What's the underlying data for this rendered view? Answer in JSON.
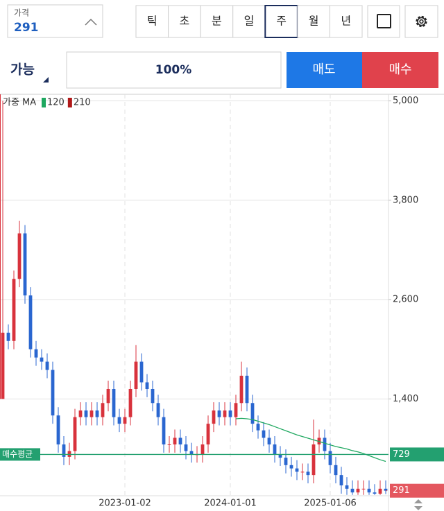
{
  "toolbar": {
    "price_label": "가격",
    "price": "291",
    "periods": [
      "틱",
      "초",
      "분",
      "일",
      "주",
      "월",
      "년"
    ],
    "selected_period": 4,
    "qty_mode": "가능",
    "qty": "100%",
    "sell": "매도",
    "buy": "매수"
  },
  "chart_data": {
    "type": "candlestick",
    "legend_title": "가중 MA",
    "categories": [
      null,
      null,
      null,
      null,
      null,
      null,
      null,
      null,
      null,
      null,
      null,
      null,
      null,
      null,
      null,
      null,
      null,
      null,
      null,
      null,
      null,
      null,
      "2023-01-02",
      null,
      null,
      null,
      null,
      null,
      null,
      null,
      null,
      null,
      null,
      null,
      null,
      null,
      null,
      null,
      null,
      null,
      null,
      "2024-01-01",
      null,
      null,
      null,
      null,
      null,
      null,
      null,
      null,
      null,
      null,
      null,
      null,
      null,
      null,
      null,
      null,
      null,
      "2025-01-06",
      null,
      null,
      null,
      null,
      null,
      null,
      null,
      null,
      null,
      null
    ],
    "open": [
      1400,
      2200,
      2100,
      2850,
      3400,
      2650,
      2000,
      1900,
      1850,
      1750,
      1200,
      850,
      700,
      770,
      1180,
      1260,
      1180,
      1260,
      1180,
      1350,
      1520,
      1180,
      1100,
      1180,
      1520,
      1850,
      1600,
      1520,
      1350,
      1180,
      850,
      850,
      930,
      850,
      770,
      730,
      730,
      850,
      1100,
      1260,
      1180,
      1260,
      1180,
      1350,
      1680,
      1350,
      1100,
      1020,
      930,
      850,
      730,
      690,
      600,
      560,
      520,
      520,
      480,
      850,
      930,
      770,
      600,
      480,
      355,
      315,
      270,
      315,
      315,
      270,
      255,
      315
    ],
    "high": [
      5000,
      2300,
      2950,
      3550,
      3500,
      2750,
      2100,
      2000,
      1950,
      1850,
      1300,
      950,
      870,
      1280,
      1360,
      1360,
      1360,
      1360,
      1450,
      1620,
      1620,
      1280,
      1280,
      1620,
      2050,
      1950,
      1700,
      1620,
      1450,
      1280,
      950,
      1030,
      1030,
      950,
      870,
      830,
      950,
      1200,
      1360,
      1360,
      1360,
      1360,
      1450,
      1850,
      1780,
      1450,
      1200,
      1120,
      1030,
      950,
      830,
      790,
      700,
      660,
      620,
      620,
      1150,
      1030,
      1030,
      870,
      700,
      580,
      455,
      415,
      415,
      415,
      415,
      370,
      415,
      415
    ],
    "low": [
      1400,
      2000,
      2000,
      2750,
      2550,
      1900,
      1800,
      1750,
      1650,
      1100,
      750,
      600,
      600,
      670,
      1080,
      1080,
      1080,
      1080,
      1080,
      1250,
      1080,
      1000,
      1000,
      1080,
      1420,
      1500,
      1420,
      1250,
      1080,
      750,
      750,
      750,
      750,
      670,
      630,
      630,
      630,
      750,
      1000,
      1080,
      1080,
      1080,
      1080,
      1250,
      1250,
      1000,
      920,
      830,
      750,
      630,
      590,
      500,
      460,
      420,
      420,
      380,
      380,
      750,
      670,
      500,
      380,
      255,
      240,
      240,
      240,
      240,
      240,
      240,
      240,
      250
    ],
    "close": [
      2200,
      2100,
      2850,
      3400,
      2650,
      2000,
      1900,
      1850,
      1750,
      1200,
      850,
      700,
      770,
      1180,
      1260,
      1180,
      1260,
      1180,
      1350,
      1520,
      1180,
      1100,
      1180,
      1520,
      1850,
      1600,
      1520,
      1350,
      1180,
      850,
      850,
      930,
      850,
      770,
      730,
      730,
      850,
      1100,
      1260,
      1180,
      1260,
      1180,
      1350,
      1680,
      1350,
      1100,
      1020,
      930,
      850,
      730,
      690,
      600,
      560,
      520,
      520,
      480,
      850,
      930,
      770,
      600,
      480,
      355,
      315,
      270,
      315,
      315,
      270,
      255,
      315,
      291
    ],
    "up_color": "#d8323c",
    "down_color": "#2a66d0",
    "series": [
      {
        "name": "120",
        "color": "#1fa860",
        "values": [
          null,
          null,
          null,
          null,
          null,
          null,
          null,
          null,
          null,
          null,
          null,
          null,
          null,
          null,
          null,
          null,
          null,
          null,
          null,
          null,
          null,
          null,
          null,
          null,
          null,
          null,
          null,
          null,
          null,
          null,
          null,
          null,
          null,
          null,
          null,
          null,
          null,
          null,
          null,
          null,
          null,
          null,
          1160,
          1165,
          1160,
          1150,
          1130,
          1110,
          1090,
          1065,
          1040,
          1015,
          990,
          965,
          945,
          925,
          905,
          885,
          865,
          845,
          825,
          810,
          795,
          775,
          760,
          740,
          715,
          690,
          665,
          645
        ]
      },
      {
        "name": "210",
        "color": "#b01818",
        "values": [
          null,
          null,
          null,
          null,
          null,
          null,
          null,
          null,
          null,
          null,
          null,
          null,
          null,
          null,
          null,
          null,
          null,
          null,
          null,
          null,
          null,
          null,
          null,
          null,
          null,
          null,
          null,
          null,
          null,
          null,
          null,
          null,
          null,
          null,
          null,
          null,
          null,
          null,
          null,
          null,
          null,
          null,
          null,
          null,
          null,
          null,
          null,
          null,
          null,
          null,
          null,
          null,
          null,
          null,
          null,
          null,
          null,
          null,
          null,
          null,
          null,
          null,
          null,
          null,
          null,
          null,
          null,
          null,
          null,
          null
        ]
      }
    ],
    "ylim": [
      230,
      5080
    ],
    "yticks": [
      {
        "value": 1400,
        "label": "1,400"
      },
      {
        "value": 2600,
        "label": "2,600"
      },
      {
        "value": 3800,
        "label": "3,800"
      },
      {
        "value": 5000,
        "label": "5,000"
      }
    ],
    "grid": true,
    "avg_line": {
      "label": "매수평균",
      "value": 729,
      "color": "#23a070"
    },
    "last_price": {
      "value": 291,
      "color": "#e4575f"
    }
  }
}
